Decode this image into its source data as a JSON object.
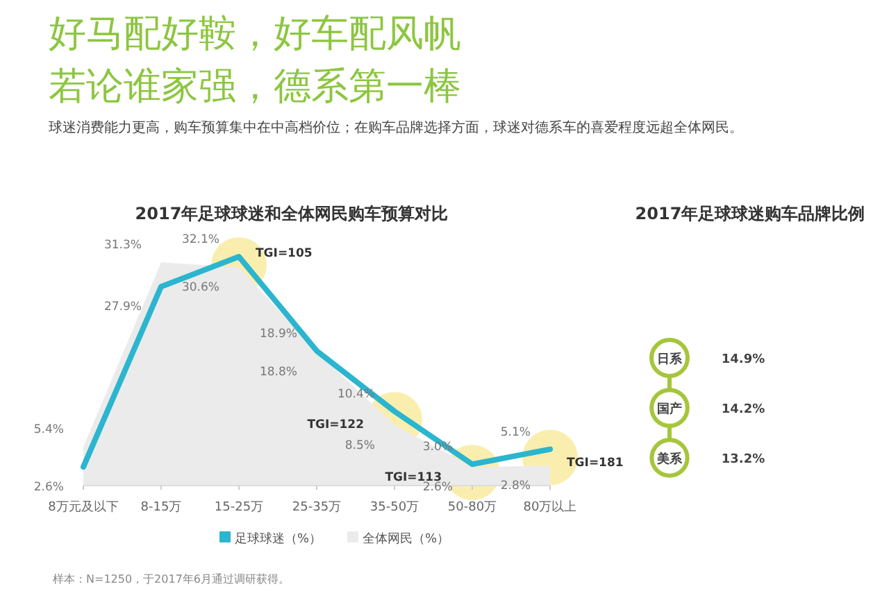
{
  "chart_data": [
    {
      "type": "other",
      "title": "好马配好鞍，好车配风帆",
      "subtitle": "若论谁家强，德系第一棒",
      "annotations": [
        "球迷消费能力更高，购车预算集中在中高档价位；在购车品牌选择方面，球迷对德系车的喜爱程度远超全体网民。"
      ]
    },
    {
      "type": "line",
      "title": "2017年足球球迷和全体网民购车预算对比",
      "categories": [
        "8万元及以下",
        "8-15万",
        "15-25万",
        "25-35万",
        "35-50万",
        "50-80万",
        "80万以上"
      ],
      "series": [
        {
          "name": "全体网民（%）",
          "type": "area",
          "color": "#ebebeb",
          "values": [
            5.4,
            31.3,
            30.6,
            18.8,
            8.5,
            2.6,
            2.8
          ],
          "value_labels": [
            "5.4%",
            "31.3%",
            "30.6%",
            "18.8%",
            "8.5%",
            "2.6%",
            "2.8%"
          ]
        },
        {
          "name": "足球球迷（%）",
          "type": "line",
          "color": "#2bb5cf",
          "values": [
            2.6,
            27.9,
            32.1,
            18.9,
            10.4,
            3.0,
            5.1
          ],
          "value_labels": [
            "2.6%",
            "27.9%",
            "32.1%",
            "18.9%",
            "10.4%",
            "3.0%",
            "5.1%"
          ]
        }
      ],
      "legend": "bottom",
      "grid": false,
      "marker": "none",
      "annotations": [
        {
          "text": "TGI=105",
          "x": "15-25万",
          "y": 32.1
        },
        {
          "text": "TGI=122",
          "x": "35-50万",
          "y": 10.4
        },
        {
          "text": "TGI=113",
          "x": "50-80万",
          "y": 3.0
        },
        {
          "text": "TGI=181",
          "x": "80万以上",
          "y": 5.1
        },
        "样本：N=1250，于2017年6月通过调研获得。"
      ]
    },
    {
      "type": "other",
      "title": "2017年足球球迷购车品牌比例",
      "categories": [
        "日系",
        "国产",
        "美系"
      ],
      "values": [
        14.9,
        14.2,
        13.2
      ],
      "value_labels": [
        "14.9%",
        "14.2%",
        "13.2%"
      ],
      "color": "#a5c63b"
    }
  ]
}
